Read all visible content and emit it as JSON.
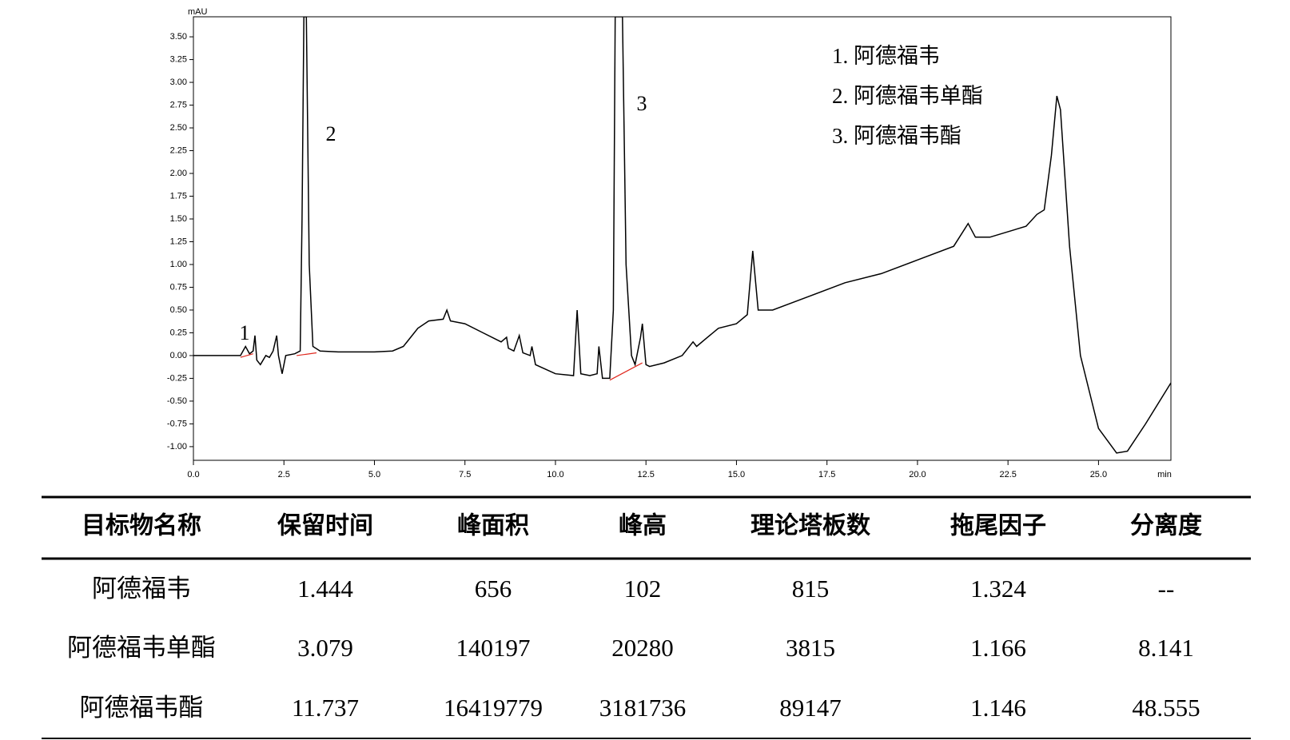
{
  "chart_data": {
    "type": "line",
    "color": "#000000",
    "baseline_color": "#e0281e",
    "y_unit": "mAU",
    "x_unit": "min",
    "xlim": [
      0,
      27
    ],
    "ylim": [
      -1.15,
      3.72
    ],
    "xticks": [
      {
        "value": 0,
        "label": "0.0"
      },
      {
        "value": 2.5,
        "label": "2.5"
      },
      {
        "value": 5,
        "label": "5.0"
      },
      {
        "value": 7.5,
        "label": "7.5"
      },
      {
        "value": 10,
        "label": "10.0"
      },
      {
        "value": 12.5,
        "label": "12.5"
      },
      {
        "value": 15,
        "label": "15.0"
      },
      {
        "value": 17.5,
        "label": "17.5"
      },
      {
        "value": 20,
        "label": "20.0"
      },
      {
        "value": 22.5,
        "label": "22.5"
      },
      {
        "value": 25,
        "label": "25.0"
      }
    ],
    "yticks": [
      {
        "value": -1,
        "label": "-1.00"
      },
      {
        "value": -0.75,
        "label": "-0.75"
      },
      {
        "value": -0.5,
        "label": "-0.50"
      },
      {
        "value": -0.25,
        "label": "-0.25"
      },
      {
        "value": 0,
        "label": "0.00"
      },
      {
        "value": 0.25,
        "label": "0.25"
      },
      {
        "value": 0.5,
        "label": "0.50"
      },
      {
        "value": 0.75,
        "label": "0.75"
      },
      {
        "value": 1,
        "label": "1.00"
      },
      {
        "value": 1.25,
        "label": "1.25"
      },
      {
        "value": 1.5,
        "label": "1.50"
      },
      {
        "value": 1.75,
        "label": "1.75"
      },
      {
        "value": 2,
        "label": "2.00"
      },
      {
        "value": 2.25,
        "label": "2.25"
      },
      {
        "value": 2.5,
        "label": "2.50"
      },
      {
        "value": 2.75,
        "label": "2.75"
      },
      {
        "value": 3,
        "label": "3.00"
      },
      {
        "value": 3.25,
        "label": "3.25"
      },
      {
        "value": 3.5,
        "label": "3.50"
      }
    ],
    "x": [
      0,
      1.0,
      1.3,
      1.44,
      1.55,
      1.65,
      1.7,
      1.75,
      1.85,
      2.0,
      2.1,
      2.2,
      2.3,
      2.35,
      2.45,
      2.55,
      2.8,
      2.95,
      3.0,
      3.05,
      3.12,
      3.2,
      3.3,
      3.5,
      4.0,
      5.0,
      5.5,
      5.8,
      6.2,
      6.5,
      6.9,
      7.0,
      7.1,
      7.5,
      8.0,
      8.5,
      8.65,
      8.7,
      8.85,
      9.0,
      9.1,
      9.3,
      9.35,
      9.45,
      10.0,
      10.5,
      10.6,
      10.7,
      10.95,
      11.15,
      11.2,
      11.3,
      11.5,
      11.6,
      11.65,
      11.85,
      11.95,
      12.1,
      12.2,
      12.35,
      12.4,
      12.5,
      12.6,
      13.0,
      13.5,
      13.8,
      13.9,
      14.2,
      14.5,
      15.0,
      15.3,
      15.45,
      15.6,
      16.0,
      17.0,
      18.0,
      19.0,
      20.0,
      21.0,
      21.4,
      21.6,
      22.0,
      23.0,
      23.3,
      23.5,
      23.7,
      23.85,
      23.95,
      24.2,
      24.5,
      25.0,
      25.5,
      25.8,
      26.3,
      27.0
    ],
    "y": [
      0.0,
      0.0,
      0.0,
      0.1,
      0.02,
      0.05,
      0.22,
      -0.05,
      -0.1,
      0.0,
      -0.02,
      0.05,
      0.22,
      0.0,
      -0.2,
      0.0,
      0.02,
      0.05,
      1.5,
      3.72,
      3.72,
      1.0,
      0.1,
      0.05,
      0.04,
      0.04,
      0.05,
      0.1,
      0.3,
      0.38,
      0.4,
      0.5,
      0.38,
      0.35,
      0.25,
      0.15,
      0.2,
      0.08,
      0.05,
      0.22,
      0.03,
      0.0,
      0.1,
      -0.1,
      -0.2,
      -0.22,
      0.5,
      -0.2,
      -0.22,
      -0.2,
      0.1,
      -0.25,
      -0.25,
      0.5,
      3.72,
      3.72,
      1.0,
      0.0,
      -0.1,
      0.2,
      0.35,
      -0.1,
      -0.12,
      -0.08,
      0.0,
      0.15,
      0.1,
      0.2,
      0.3,
      0.35,
      0.45,
      1.15,
      0.5,
      0.5,
      0.65,
      0.8,
      0.9,
      1.05,
      1.2,
      1.45,
      1.3,
      1.3,
      1.42,
      1.55,
      1.6,
      2.2,
      2.85,
      2.7,
      1.2,
      0.0,
      -0.8,
      -1.07,
      -1.05,
      -0.75,
      -0.3
    ],
    "baselines": [
      {
        "x": [
          1.3,
          1.65
        ],
        "y": [
          -0.02,
          0.02
        ]
      },
      {
        "x": [
          2.85,
          3.4
        ],
        "y": [
          0.0,
          0.03
        ]
      },
      {
        "x": [
          11.5,
          12.4
        ],
        "y": [
          -0.27,
          -0.08
        ]
      }
    ],
    "peak_labels": [
      "1",
      "2",
      "3"
    ],
    "legend": [
      "1. 阿德福韦",
      "2. 阿德福韦单酯",
      "3. 阿德福韦酯"
    ]
  },
  "table": {
    "columns": [
      "目标物名称",
      "保留时间",
      "峰面积",
      "峰高",
      "理论塔板数",
      "拖尾因子",
      "分离度"
    ],
    "rows": [
      [
        "阿德福韦",
        "1.444",
        "656",
        "102",
        "815",
        "1.324",
        "--"
      ],
      [
        "阿德福韦单酯",
        "3.079",
        "140197",
        "20280",
        "3815",
        "1.166",
        "8.141"
      ],
      [
        "阿德福韦酯",
        "11.737",
        "16419779",
        "3181736",
        "89147",
        "1.146",
        "48.555"
      ]
    ]
  }
}
